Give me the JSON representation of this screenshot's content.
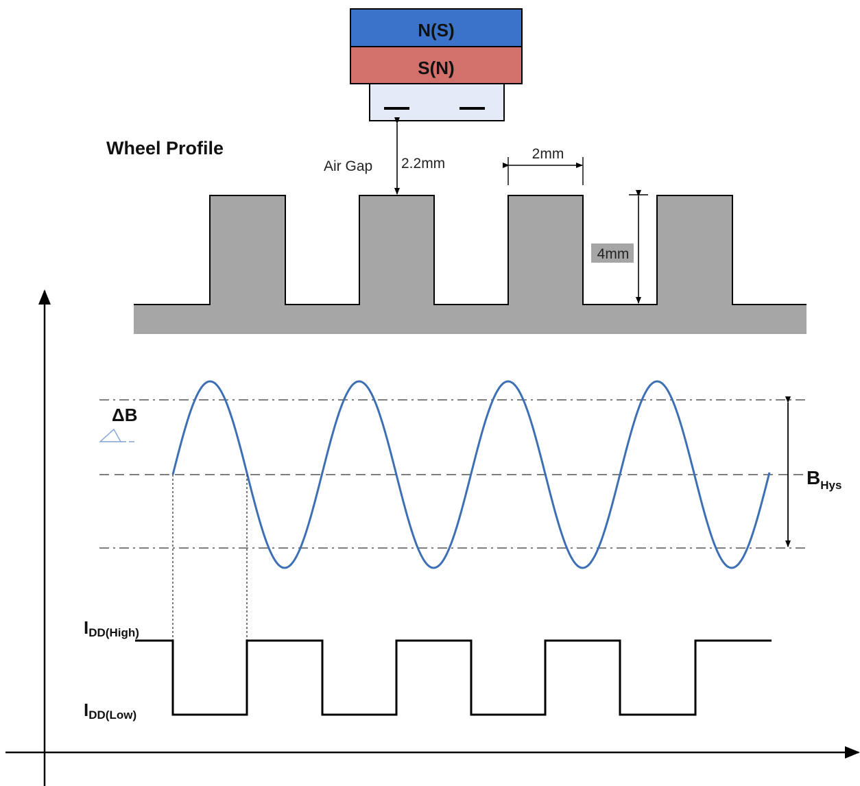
{
  "magnet": {
    "north_label": "N(S)",
    "south_label": "S(N)",
    "colors": {
      "north": "#3a73c8",
      "south": "#d2706b",
      "sensor": "#e5ebf6"
    }
  },
  "wheel": {
    "title": "Wheel Profile",
    "air_gap_label": "Air Gap",
    "air_gap_value": "2.2mm",
    "tooth_width": "2mm",
    "tooth_height": "4mm",
    "color": "#a6a6a6"
  },
  "signal": {
    "delta_b_label": "ΔB",
    "hysteresis_label_main": "B",
    "hysteresis_label_sub": "Hys",
    "wave_color": "#3d6fb5"
  },
  "output": {
    "high_label_main": "I",
    "high_label_sub": "DD(High)",
    "low_label_main": "I",
    "low_label_sub": "DD(Low)"
  }
}
